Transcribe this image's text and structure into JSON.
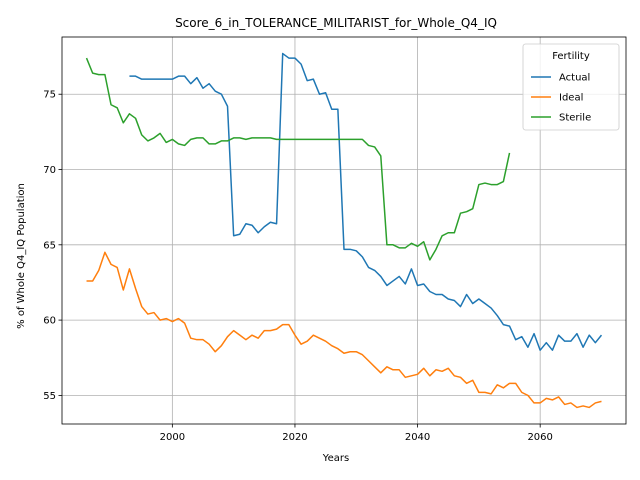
{
  "chart_data": {
    "type": "line",
    "title": "Score_6_in_TOLERANCE_MILITARIST_for_Whole_Q4_IQ",
    "xlabel": "Years",
    "ylabel": "% of Whole Q4_IQ Population",
    "xlim": [
      1982,
      2074
    ],
    "ylim": [
      53.1,
      78.8
    ],
    "xticks": [
      2000,
      2020,
      2040,
      2060
    ],
    "yticks": [
      55,
      60,
      65,
      70,
      75
    ],
    "grid": true,
    "legend": {
      "title": "Fertility",
      "position": "top-right"
    },
    "series": [
      {
        "name": "Actual",
        "color": "#1f77b4",
        "points": [
          [
            1993,
            76.2
          ],
          [
            1994,
            76.2
          ],
          [
            1995,
            76.0
          ],
          [
            1996,
            76.0
          ],
          [
            1997,
            76.0
          ],
          [
            1998,
            76.0
          ],
          [
            1999,
            76.0
          ],
          [
            2000,
            76.0
          ],
          [
            2001,
            76.2
          ],
          [
            2002,
            76.2
          ],
          [
            2003,
            75.7
          ],
          [
            2004,
            76.1
          ],
          [
            2005,
            75.4
          ],
          [
            2006,
            75.7
          ],
          [
            2007,
            75.2
          ],
          [
            2008,
            75.0
          ],
          [
            2009,
            74.2
          ],
          [
            2010,
            65.6
          ],
          [
            2011,
            65.7
          ],
          [
            2012,
            66.4
          ],
          [
            2013,
            66.3
          ],
          [
            2014,
            65.8
          ],
          [
            2015,
            66.2
          ],
          [
            2016,
            66.5
          ],
          [
            2017,
            66.4
          ],
          [
            2018,
            77.7
          ],
          [
            2019,
            77.4
          ],
          [
            2020,
            77.4
          ],
          [
            2021,
            77.0
          ],
          [
            2022,
            75.9
          ],
          [
            2023,
            76.0
          ],
          [
            2024,
            75.0
          ],
          [
            2025,
            75.1
          ],
          [
            2026,
            74.0
          ],
          [
            2027,
            74.0
          ],
          [
            2028,
            64.7
          ],
          [
            2029,
            64.7
          ],
          [
            2030,
            64.6
          ],
          [
            2031,
            64.2
          ],
          [
            2032,
            63.5
          ],
          [
            2033,
            63.3
          ],
          [
            2034,
            62.9
          ],
          [
            2035,
            62.3
          ],
          [
            2036,
            62.6
          ],
          [
            2037,
            62.9
          ],
          [
            2038,
            62.4
          ],
          [
            2039,
            63.4
          ],
          [
            2040,
            62.3
          ],
          [
            2041,
            62.4
          ],
          [
            2042,
            61.9
          ],
          [
            2043,
            61.7
          ],
          [
            2044,
            61.7
          ],
          [
            2045,
            61.4
          ],
          [
            2046,
            61.3
          ],
          [
            2047,
            60.9
          ],
          [
            2048,
            61.7
          ],
          [
            2049,
            61.1
          ],
          [
            2050,
            61.4
          ],
          [
            2051,
            61.1
          ],
          [
            2052,
            60.8
          ],
          [
            2053,
            60.3
          ],
          [
            2054,
            59.7
          ],
          [
            2055,
            59.6
          ],
          [
            2056,
            58.7
          ],
          [
            2057,
            58.9
          ],
          [
            2058,
            58.2
          ],
          [
            2059,
            59.1
          ],
          [
            2060,
            58.0
          ],
          [
            2061,
            58.5
          ],
          [
            2062,
            58.0
          ],
          [
            2063,
            59.0
          ],
          [
            2064,
            58.6
          ],
          [
            2065,
            58.6
          ],
          [
            2066,
            59.1
          ],
          [
            2067,
            58.2
          ],
          [
            2068,
            59.0
          ],
          [
            2069,
            58.5
          ],
          [
            2070,
            59.0
          ]
        ]
      },
      {
        "name": "Ideal",
        "color": "#ff7f0e",
        "points": [
          [
            1986,
            62.6
          ],
          [
            1987,
            62.6
          ],
          [
            1988,
            63.3
          ],
          [
            1989,
            64.5
          ],
          [
            1990,
            63.7
          ],
          [
            1991,
            63.5
          ],
          [
            1992,
            62.0
          ],
          [
            1993,
            63.4
          ],
          [
            1994,
            62.1
          ],
          [
            1995,
            60.9
          ],
          [
            1996,
            60.4
          ],
          [
            1997,
            60.5
          ],
          [
            1998,
            60.0
          ],
          [
            1999,
            60.1
          ],
          [
            2000,
            59.9
          ],
          [
            2001,
            60.1
          ],
          [
            2002,
            59.8
          ],
          [
            2003,
            58.8
          ],
          [
            2004,
            58.7
          ],
          [
            2005,
            58.7
          ],
          [
            2006,
            58.4
          ],
          [
            2007,
            57.9
          ],
          [
            2008,
            58.3
          ],
          [
            2009,
            58.9
          ],
          [
            2010,
            59.3
          ],
          [
            2011,
            59.0
          ],
          [
            2012,
            58.7
          ],
          [
            2013,
            59.0
          ],
          [
            2014,
            58.8
          ],
          [
            2015,
            59.3
          ],
          [
            2016,
            59.3
          ],
          [
            2017,
            59.4
          ],
          [
            2018,
            59.7
          ],
          [
            2019,
            59.7
          ],
          [
            2020,
            59.0
          ],
          [
            2021,
            58.4
          ],
          [
            2022,
            58.6
          ],
          [
            2023,
            59.0
          ],
          [
            2024,
            58.8
          ],
          [
            2025,
            58.6
          ],
          [
            2026,
            58.3
          ],
          [
            2027,
            58.1
          ],
          [
            2028,
            57.8
          ],
          [
            2029,
            57.9
          ],
          [
            2030,
            57.9
          ],
          [
            2031,
            57.7
          ],
          [
            2032,
            57.3
          ],
          [
            2033,
            56.9
          ],
          [
            2034,
            56.5
          ],
          [
            2035,
            56.9
          ],
          [
            2036,
            56.7
          ],
          [
            2037,
            56.7
          ],
          [
            2038,
            56.2
          ],
          [
            2039,
            56.3
          ],
          [
            2040,
            56.4
          ],
          [
            2041,
            56.8
          ],
          [
            2042,
            56.3
          ],
          [
            2043,
            56.7
          ],
          [
            2044,
            56.6
          ],
          [
            2045,
            56.8
          ],
          [
            2046,
            56.3
          ],
          [
            2047,
            56.2
          ],
          [
            2048,
            55.8
          ],
          [
            2049,
            56.0
          ],
          [
            2050,
            55.2
          ],
          [
            2051,
            55.2
          ],
          [
            2052,
            55.1
          ],
          [
            2053,
            55.7
          ],
          [
            2054,
            55.5
          ],
          [
            2055,
            55.8
          ],
          [
            2056,
            55.8
          ],
          [
            2057,
            55.2
          ],
          [
            2058,
            55.0
          ],
          [
            2059,
            54.5
          ],
          [
            2060,
            54.5
          ],
          [
            2061,
            54.8
          ],
          [
            2062,
            54.7
          ],
          [
            2063,
            54.9
          ],
          [
            2064,
            54.4
          ],
          [
            2065,
            54.5
          ],
          [
            2066,
            54.2
          ],
          [
            2067,
            54.3
          ],
          [
            2068,
            54.2
          ],
          [
            2069,
            54.5
          ],
          [
            2070,
            54.6
          ]
        ]
      },
      {
        "name": "Sterile",
        "color": "#2ca02c",
        "points": [
          [
            1986,
            77.4
          ],
          [
            1987,
            76.4
          ],
          [
            1988,
            76.3
          ],
          [
            1989,
            76.3
          ],
          [
            1990,
            74.3
          ],
          [
            1991,
            74.1
          ],
          [
            1992,
            73.1
          ],
          [
            1993,
            73.7
          ],
          [
            1994,
            73.4
          ],
          [
            1995,
            72.3
          ],
          [
            1996,
            71.9
          ],
          [
            1997,
            72.1
          ],
          [
            1998,
            72.4
          ],
          [
            1999,
            71.8
          ],
          [
            2000,
            72.0
          ],
          [
            2001,
            71.7
          ],
          [
            2002,
            71.6
          ],
          [
            2003,
            72.0
          ],
          [
            2004,
            72.1
          ],
          [
            2005,
            72.1
          ],
          [
            2006,
            71.7
          ],
          [
            2007,
            71.7
          ],
          [
            2008,
            71.9
          ],
          [
            2009,
            71.9
          ],
          [
            2010,
            72.1
          ],
          [
            2011,
            72.1
          ],
          [
            2012,
            72.0
          ],
          [
            2013,
            72.1
          ],
          [
            2014,
            72.1
          ],
          [
            2015,
            72.1
          ],
          [
            2016,
            72.1
          ],
          [
            2017,
            72.0
          ],
          [
            2018,
            72.0
          ],
          [
            2019,
            72.0
          ],
          [
            2020,
            72.0
          ],
          [
            2021,
            72.0
          ],
          [
            2022,
            72.0
          ],
          [
            2023,
            72.0
          ],
          [
            2024,
            72.0
          ],
          [
            2025,
            72.0
          ],
          [
            2026,
            72.0
          ],
          [
            2027,
            72.0
          ],
          [
            2028,
            72.0
          ],
          [
            2029,
            72.0
          ],
          [
            2030,
            72.0
          ],
          [
            2031,
            72.0
          ],
          [
            2032,
            71.6
          ],
          [
            2033,
            71.5
          ],
          [
            2034,
            70.9
          ],
          [
            2035,
            65.0
          ],
          [
            2036,
            65.0
          ],
          [
            2037,
            64.8
          ],
          [
            2038,
            64.8
          ],
          [
            2039,
            65.1
          ],
          [
            2040,
            64.9
          ],
          [
            2041,
            65.2
          ],
          [
            2042,
            64.0
          ],
          [
            2043,
            64.7
          ],
          [
            2044,
            65.6
          ],
          [
            2045,
            65.8
          ],
          [
            2046,
            65.8
          ],
          [
            2047,
            67.1
          ],
          [
            2048,
            67.2
          ],
          [
            2049,
            67.4
          ],
          [
            2050,
            69.0
          ],
          [
            2051,
            69.1
          ],
          [
            2052,
            69.0
          ],
          [
            2053,
            69.0
          ],
          [
            2054,
            69.2
          ],
          [
            2055,
            71.1
          ]
        ]
      }
    ]
  }
}
